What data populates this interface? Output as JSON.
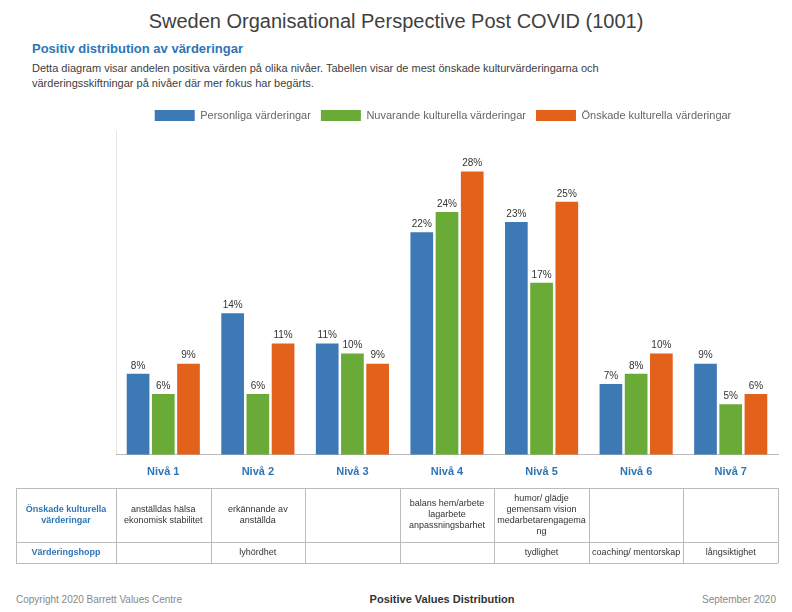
{
  "chart_data": {
    "type": "bar",
    "title": "Sweden Organisational Perspective Post COVID (1001)",
    "subtitle": "Positiv distribution av värderingar",
    "description": "Detta diagram visar andelen positiva värden på olika nivåer. Tabellen visar de mest önskade kulturvärderingarna och\nvärderingsskiftningar på nivåer där mer fokus har begärts.",
    "categories": [
      "Nivå 1",
      "Nivå 2",
      "Nivå 3",
      "Nivå 4",
      "Nivå 5",
      "Nivå 6",
      "Nivå 7"
    ],
    "series": [
      {
        "name": "Personliga värderingar",
        "color": "#3d7ab5",
        "values": [
          8,
          14,
          11,
          22,
          23,
          7,
          9
        ],
        "value_labels": [
          "8%",
          "14%",
          "11%",
          "22%",
          "23%",
          "7%",
          "9%"
        ]
      },
      {
        "name": "Nuvarande kulturella värderingar",
        "color": "#6aaa36",
        "values": [
          6,
          6,
          10,
          24,
          17,
          8,
          5
        ],
        "value_labels": [
          "6%",
          "6%",
          "10%",
          "24%",
          "17%",
          "8%",
          "5%"
        ]
      },
      {
        "name": "Önskade kulturella värderingar",
        "color": "#e2621b",
        "values": [
          9,
          11,
          9,
          28,
          25,
          10,
          6
        ],
        "value_labels": [
          "9%",
          "11%",
          "9%",
          "28%",
          "25%",
          "10%",
          "6%"
        ]
      }
    ],
    "ylim": [
      0,
      32
    ],
    "grid": false,
    "legend": "top",
    "data_labels": true,
    "tick_labels": "x",
    "table": {
      "rows": [
        {
          "label": "Önskade kulturella\nvärderingar",
          "cells": [
            "anställdas hälsa\nekonomisk stabilitet",
            "erkännande av\nanställda",
            null,
            "balans hem/arbete\nlagarbete\nanpassningsbarhet",
            "humor/ glädje\ngemensam vision\nmedarbetarengagema\nng",
            null,
            null
          ]
        },
        {
          "label": "Värderingshopp",
          "cells": [
            null,
            "lyhördhet",
            null,
            null,
            "tydlighet",
            "coaching/ mentorskap",
            "långsiktighet"
          ]
        }
      ]
    },
    "footer": [
      "Copyright 2020 Barrett Values Centre",
      "Positive Values Distribution",
      "September 2020"
    ]
  }
}
